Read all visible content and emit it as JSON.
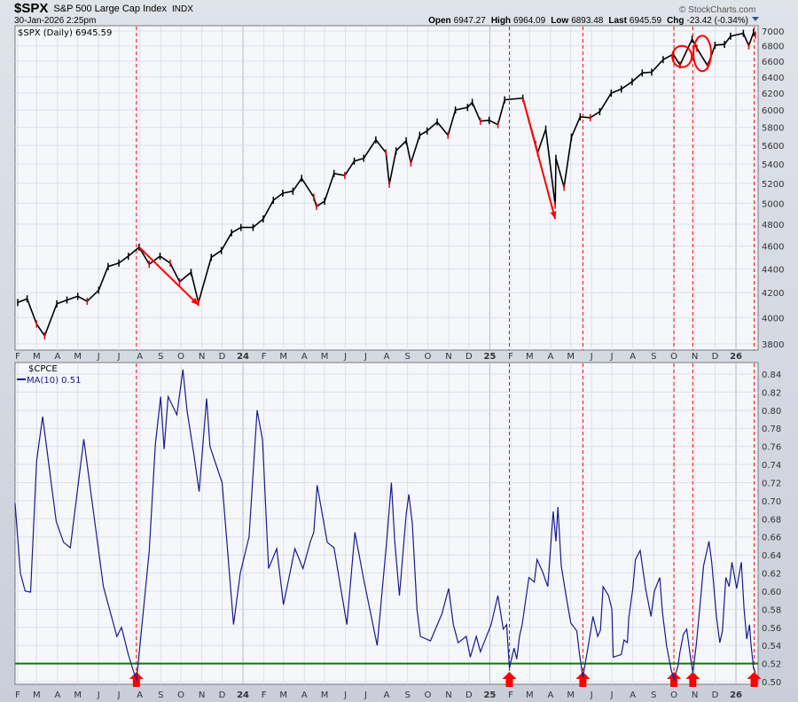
{
  "header": {
    "symbol": "$SPX",
    "name": "S&P 500 Large Cap Index",
    "exchange": "INDX",
    "datetime": "30-Jan-2026 2:25pm",
    "watermark": "© StockCharts.com",
    "quote": {
      "open_label": "Open",
      "open": "6947.27",
      "high_label": "High",
      "high": "6964.09",
      "low_label": "Low",
      "low": "6893.48",
      "last_label": "Last",
      "last": "6945.59",
      "chg_label": "Chg",
      "chg": "-23.42 (-0.34%)"
    }
  },
  "chart_data": [
    {
      "type": "line",
      "title": "$SPX (Daily) 6945.59",
      "yscale": "log",
      "ylim": [
        3700,
        7050
      ],
      "yticks": [
        3800,
        4000,
        4200,
        4400,
        4600,
        4800,
        5000,
        5200,
        5400,
        5600,
        5800,
        6000,
        6200,
        6400,
        6600,
        6800,
        7000
      ],
      "grid": true,
      "color": "#000000",
      "points": [
        [
          "2023-02-01",
          4120
        ],
        [
          "2023-02-15",
          4150
        ],
        [
          "2023-03-01",
          3950
        ],
        [
          "2023-03-13",
          3860
        ],
        [
          "2023-03-31",
          4110
        ],
        [
          "2023-04-15",
          4140
        ],
        [
          "2023-05-01",
          4170
        ],
        [
          "2023-05-15",
          4130
        ],
        [
          "2023-06-01",
          4220
        ],
        [
          "2023-06-15",
          4420
        ],
        [
          "2023-07-01",
          4450
        ],
        [
          "2023-07-15",
          4510
        ],
        [
          "2023-07-31",
          4590
        ],
        [
          "2023-08-15",
          4440
        ],
        [
          "2023-08-31",
          4510
        ],
        [
          "2023-09-15",
          4450
        ],
        [
          "2023-09-29",
          4290
        ],
        [
          "2023-10-16",
          4370
        ],
        [
          "2023-10-27",
          4120
        ],
        [
          "2023-11-15",
          4500
        ],
        [
          "2023-11-30",
          4560
        ],
        [
          "2023-12-15",
          4720
        ],
        [
          "2023-12-29",
          4770
        ],
        [
          "2024-01-16",
          4770
        ],
        [
          "2024-01-31",
          4850
        ],
        [
          "2024-02-15",
          5030
        ],
        [
          "2024-02-29",
          5100
        ],
        [
          "2024-03-15",
          5120
        ],
        [
          "2024-03-28",
          5250
        ],
        [
          "2024-04-15",
          5060
        ],
        [
          "2024-04-19",
          4970
        ],
        [
          "2024-05-01",
          5020
        ],
        [
          "2024-05-15",
          5300
        ],
        [
          "2024-05-31",
          5280
        ],
        [
          "2024-06-14",
          5430
        ],
        [
          "2024-06-28",
          5460
        ],
        [
          "2024-07-16",
          5660
        ],
        [
          "2024-07-31",
          5520
        ],
        [
          "2024-08-05",
          5190
        ],
        [
          "2024-08-15",
          5540
        ],
        [
          "2024-08-30",
          5650
        ],
        [
          "2024-09-06",
          5410
        ],
        [
          "2024-09-19",
          5710
        ],
        [
          "2024-09-30",
          5760
        ],
        [
          "2024-10-15",
          5860
        ],
        [
          "2024-10-31",
          5710
        ],
        [
          "2024-11-11",
          6000
        ],
        [
          "2024-11-29",
          6030
        ],
        [
          "2024-12-06",
          6090
        ],
        [
          "2024-12-18",
          5870
        ],
        [
          "2024-12-31",
          5880
        ],
        [
          "2025-01-13",
          5830
        ],
        [
          "2025-01-23",
          6120
        ],
        [
          "2025-02-19",
          6140
        ],
        [
          "2025-03-10",
          5610
        ],
        [
          "2025-03-13",
          5520
        ],
        [
          "2025-03-25",
          5780
        ],
        [
          "2025-04-08",
          4980
        ],
        [
          "2025-04-09",
          5460
        ],
        [
          "2025-04-21",
          5160
        ],
        [
          "2025-05-02",
          5690
        ],
        [
          "2025-05-15",
          5920
        ],
        [
          "2025-05-30",
          5910
        ],
        [
          "2025-06-13",
          5980
        ],
        [
          "2025-06-30",
          6200
        ],
        [
          "2025-07-15",
          6250
        ],
        [
          "2025-07-31",
          6340
        ],
        [
          "2025-08-15",
          6450
        ],
        [
          "2025-08-29",
          6460
        ],
        [
          "2025-09-15",
          6620
        ],
        [
          "2025-09-30",
          6690
        ],
        [
          "2025-10-10",
          6550
        ],
        [
          "2025-10-28",
          6890
        ],
        [
          "2025-11-04",
          6770
        ],
        [
          "2025-11-20",
          6540
        ],
        [
          "2025-12-01",
          6810
        ],
        [
          "2025-12-15",
          6820
        ],
        [
          "2025-12-24",
          6930
        ],
        [
          "2026-01-12",
          6970
        ],
        [
          "2026-01-20",
          6800
        ],
        [
          "2026-01-27",
          6980
        ],
        [
          "2026-01-30",
          6945.59
        ]
      ],
      "annotations": {
        "color": "#ff0000",
        "arrows": [
          {
            "from": [
              "2023-07-31",
              4590
            ],
            "to": [
              "2023-10-27",
              4100
            ]
          },
          {
            "from": [
              "2025-02-19",
              6140
            ],
            "to": [
              "2025-04-08",
              4850
            ]
          }
        ],
        "circles": [
          {
            "center": [
              "2025-10-13",
              6660
            ]
          },
          {
            "center": [
              "2025-11-12",
              6700
            ]
          }
        ]
      }
    },
    {
      "type": "line",
      "title": "$CPCE",
      "series_name": "MA(10) 0.51",
      "ylim": [
        0.495,
        0.85
      ],
      "yticks": [
        0.5,
        0.52,
        0.54,
        0.56,
        0.58,
        0.6,
        0.62,
        0.64,
        0.66,
        0.68,
        0.7,
        0.72,
        0.74,
        0.76,
        0.78,
        0.8,
        0.82,
        0.84
      ],
      "grid": true,
      "color": "#1a1a8c",
      "threshold": {
        "value": 0.52,
        "color": "#008000"
      },
      "points": [
        [
          "2023-01-28",
          0.697
        ],
        [
          "2023-02-05",
          0.62
        ],
        [
          "2023-02-12",
          0.6
        ],
        [
          "2023-02-20",
          0.599
        ],
        [
          "2023-03-01",
          0.744
        ],
        [
          "2023-03-10",
          0.793
        ],
        [
          "2023-03-30",
          0.677
        ],
        [
          "2023-04-10",
          0.654
        ],
        [
          "2023-04-20",
          0.648
        ],
        [
          "2023-05-10",
          0.768
        ],
        [
          "2023-06-08",
          0.605
        ],
        [
          "2023-06-28",
          0.55
        ],
        [
          "2023-07-05",
          0.56
        ],
        [
          "2023-07-15",
          0.53
        ],
        [
          "2023-07-27",
          0.501
        ],
        [
          "2023-08-15",
          0.644
        ],
        [
          "2023-08-24",
          0.762
        ],
        [
          "2023-09-01",
          0.815
        ],
        [
          "2023-09-06",
          0.757
        ],
        [
          "2023-09-12",
          0.815
        ],
        [
          "2023-09-25",
          0.795
        ],
        [
          "2023-10-04",
          0.845
        ],
        [
          "2023-10-10",
          0.8
        ],
        [
          "2023-10-20",
          0.752
        ],
        [
          "2023-10-28",
          0.71
        ],
        [
          "2023-11-08",
          0.813
        ],
        [
          "2023-11-13",
          0.76
        ],
        [
          "2023-12-01",
          0.72
        ],
        [
          "2023-12-18",
          0.563
        ],
        [
          "2023-12-28",
          0.62
        ],
        [
          "2024-01-10",
          0.66
        ],
        [
          "2024-01-22",
          0.8
        ],
        [
          "2024-01-30",
          0.767
        ],
        [
          "2024-02-08",
          0.625
        ],
        [
          "2024-02-20",
          0.647
        ],
        [
          "2024-03-01",
          0.585
        ],
        [
          "2024-03-18",
          0.647
        ],
        [
          "2024-03-30",
          0.625
        ],
        [
          "2024-04-10",
          0.655
        ],
        [
          "2024-04-15",
          0.665
        ],
        [
          "2024-04-20",
          0.717
        ],
        [
          "2024-05-05",
          0.654
        ],
        [
          "2024-05-15",
          0.648
        ],
        [
          "2024-06-03",
          0.563
        ],
        [
          "2024-06-15",
          0.665
        ],
        [
          "2024-06-28",
          0.613
        ],
        [
          "2024-07-18",
          0.54
        ],
        [
          "2024-08-01",
          0.654
        ],
        [
          "2024-08-08",
          0.72
        ],
        [
          "2024-08-13",
          0.655
        ],
        [
          "2024-08-20",
          0.595
        ],
        [
          "2024-08-30",
          0.685
        ],
        [
          "2024-09-03",
          0.707
        ],
        [
          "2024-09-08",
          0.675
        ],
        [
          "2024-09-15",
          0.58
        ],
        [
          "2024-09-20",
          0.55
        ],
        [
          "2024-10-05",
          0.545
        ],
        [
          "2024-10-22",
          0.575
        ],
        [
          "2024-11-01",
          0.603
        ],
        [
          "2024-11-08",
          0.563
        ],
        [
          "2024-11-15",
          0.543
        ],
        [
          "2024-11-27",
          0.55
        ],
        [
          "2024-12-03",
          0.527
        ],
        [
          "2024-12-12",
          0.55
        ],
        [
          "2024-12-18",
          0.533
        ],
        [
          "2025-01-03",
          0.563
        ],
        [
          "2025-01-13",
          0.595
        ],
        [
          "2025-01-21",
          0.558
        ],
        [
          "2025-01-26",
          0.563
        ],
        [
          "2025-01-30",
          0.515
        ],
        [
          "2025-02-06",
          0.537
        ],
        [
          "2025-02-10",
          0.525
        ],
        [
          "2025-02-14",
          0.55
        ],
        [
          "2025-02-18",
          0.563
        ],
        [
          "2025-02-28",
          0.615
        ],
        [
          "2025-03-08",
          0.61
        ],
        [
          "2025-03-12",
          0.635
        ],
        [
          "2025-03-20",
          0.622
        ],
        [
          "2025-03-28",
          0.605
        ],
        [
          "2025-04-05",
          0.688
        ],
        [
          "2025-04-09",
          0.655
        ],
        [
          "2025-04-12",
          0.693
        ],
        [
          "2025-04-17",
          0.628
        ],
        [
          "2025-04-24",
          0.595
        ],
        [
          "2025-05-01",
          0.565
        ],
        [
          "2025-05-10",
          0.556
        ],
        [
          "2025-05-14",
          0.53
        ],
        [
          "2025-05-19",
          0.505
        ],
        [
          "2025-05-27",
          0.54
        ],
        [
          "2025-06-03",
          0.572
        ],
        [
          "2025-06-10",
          0.55
        ],
        [
          "2025-06-14",
          0.557
        ],
        [
          "2025-06-18",
          0.605
        ],
        [
          "2025-06-26",
          0.595
        ],
        [
          "2025-07-01",
          0.58
        ],
        [
          "2025-07-03",
          0.527
        ],
        [
          "2025-07-15",
          0.53
        ],
        [
          "2025-07-19",
          0.546
        ],
        [
          "2025-07-24",
          0.543
        ],
        [
          "2025-07-26",
          0.57
        ],
        [
          "2025-08-01",
          0.603
        ],
        [
          "2025-08-05",
          0.635
        ],
        [
          "2025-08-12",
          0.645
        ],
        [
          "2025-08-20",
          0.603
        ],
        [
          "2025-08-28",
          0.572
        ],
        [
          "2025-09-02",
          0.6
        ],
        [
          "2025-09-10",
          0.615
        ],
        [
          "2025-09-14",
          0.577
        ],
        [
          "2025-09-20",
          0.54
        ],
        [
          "2025-09-27",
          0.513
        ],
        [
          "2025-10-01",
          0.502
        ],
        [
          "2025-10-07",
          0.517
        ],
        [
          "2025-10-10",
          0.533
        ],
        [
          "2025-10-15",
          0.552
        ],
        [
          "2025-10-20",
          0.558
        ],
        [
          "2025-10-25",
          0.53
        ],
        [
          "2025-10-29",
          0.51
        ],
        [
          "2025-11-03",
          0.54
        ],
        [
          "2025-11-10",
          0.595
        ],
        [
          "2025-11-14",
          0.628
        ],
        [
          "2025-11-22",
          0.655
        ],
        [
          "2025-11-26",
          0.632
        ],
        [
          "2025-12-03",
          0.572
        ],
        [
          "2025-12-08",
          0.543
        ],
        [
          "2025-12-12",
          0.556
        ],
        [
          "2025-12-17",
          0.615
        ],
        [
          "2025-12-22",
          0.605
        ],
        [
          "2025-12-26",
          0.632
        ],
        [
          "2026-01-02",
          0.603
        ],
        [
          "2026-01-09",
          0.632
        ],
        [
          "2026-01-13",
          0.58
        ],
        [
          "2026-01-17",
          0.547
        ],
        [
          "2026-01-21",
          0.563
        ],
        [
          "2026-01-23",
          0.543
        ],
        [
          "2026-01-27",
          0.515
        ],
        [
          "2026-01-30",
          0.51
        ]
      ]
    }
  ],
  "signal_dates": [
    "2023-07-27",
    "2025-01-30",
    "2025-05-19",
    "2025-10-01",
    "2025-10-29",
    "2026-01-28"
  ],
  "signal_color": "#ff0000",
  "x_axis": {
    "start_month": "2023-02",
    "labels": [
      "F",
      "M",
      "A",
      "M",
      "J",
      "J",
      "A",
      "S",
      "O",
      "N",
      "D",
      "24",
      "F",
      "M",
      "A",
      "M",
      "J",
      "J",
      "A",
      "S",
      "O",
      "N",
      "D",
      "25",
      "F",
      "M",
      "A",
      "M",
      "J",
      "J",
      "A",
      "S",
      "O",
      "N",
      "D",
      "26"
    ]
  }
}
